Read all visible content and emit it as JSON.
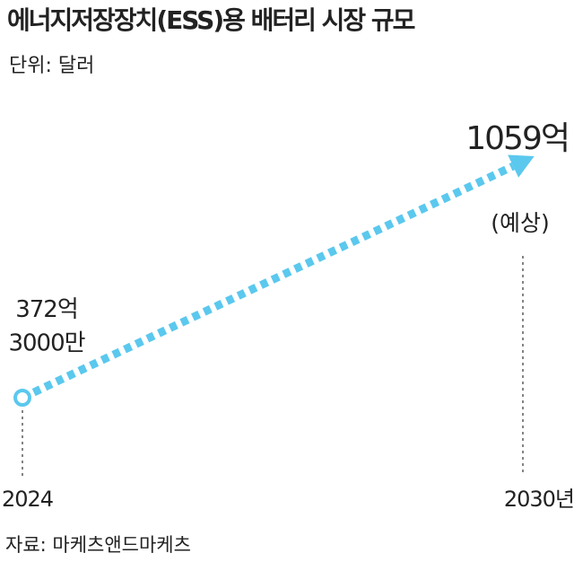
{
  "chart_data": {
    "type": "line",
    "title": "에너지저장장치(ESS)용 배터리 시장 규모",
    "subtitle": "단위: 달러",
    "categories": [
      "2024",
      "2030년"
    ],
    "values": [
      372.3,
      1059
    ],
    "value_labels": [
      "372억\n3000만",
      "1059억"
    ],
    "annotation": "(예상)",
    "source": "자료: 마케츠앤드마케츠",
    "color": "#5bc8ee"
  }
}
